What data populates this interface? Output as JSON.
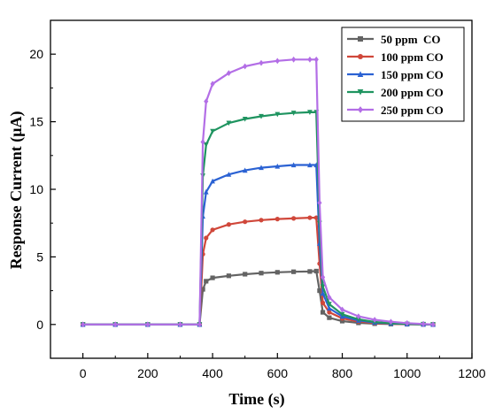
{
  "chart_data": {
    "type": "line",
    "xlabel": "Time (s)",
    "ylabel": "Response Current (μA)",
    "xlim": [
      -100,
      1200
    ],
    "ylim": [
      -2.5,
      22.5
    ],
    "xticks": [
      0,
      200,
      400,
      600,
      800,
      1000,
      1200
    ],
    "yticks": [
      0,
      5,
      10,
      15,
      20
    ],
    "legend_position": "top-right",
    "series": [
      {
        "name": "50 ppm  CO",
        "color": "#636363",
        "marker": "square",
        "x": [
          0,
          100,
          200,
          300,
          360,
          370,
          380,
          400,
          450,
          500,
          550,
          600,
          650,
          700,
          720,
          730,
          740,
          760,
          800,
          850,
          900,
          950,
          1000,
          1050,
          1080
        ],
        "y": [
          0,
          0,
          0,
          0,
          0,
          2.6,
          3.2,
          3.45,
          3.6,
          3.72,
          3.8,
          3.86,
          3.9,
          3.92,
          3.95,
          2.5,
          0.9,
          0.5,
          0.25,
          0.12,
          0.06,
          0.03,
          0.02,
          0.01,
          0.0
        ]
      },
      {
        "name": "100 ppm CO",
        "color": "#d0473a",
        "marker": "circle",
        "x": [
          0,
          100,
          200,
          300,
          360,
          370,
          380,
          400,
          450,
          500,
          550,
          600,
          650,
          700,
          720,
          730,
          740,
          760,
          800,
          850,
          900,
          950,
          1000,
          1050,
          1080
        ],
        "y": [
          0,
          0,
          0,
          0,
          0,
          5.2,
          6.4,
          7.0,
          7.4,
          7.6,
          7.72,
          7.8,
          7.85,
          7.9,
          7.9,
          4.5,
          1.6,
          0.9,
          0.45,
          0.22,
          0.1,
          0.05,
          0.02,
          0.01,
          0.0
        ]
      },
      {
        "name": "150 ppm CO",
        "color": "#2b62d3",
        "marker": "triangle-up",
        "x": [
          0,
          100,
          200,
          300,
          360,
          370,
          380,
          400,
          450,
          500,
          550,
          600,
          650,
          700,
          720,
          730,
          740,
          760,
          800,
          850,
          900,
          950,
          1000,
          1050,
          1080
        ],
        "y": [
          0,
          0,
          0,
          0,
          0,
          8.0,
          9.8,
          10.6,
          11.1,
          11.4,
          11.6,
          11.7,
          11.8,
          11.8,
          11.8,
          6.0,
          2.3,
          1.2,
          0.6,
          0.3,
          0.14,
          0.07,
          0.03,
          0.01,
          0.0
        ]
      },
      {
        "name": "200 ppm CO",
        "color": "#1f9460",
        "marker": "triangle-down",
        "x": [
          0,
          100,
          200,
          300,
          360,
          370,
          380,
          400,
          450,
          500,
          550,
          600,
          650,
          700,
          720,
          730,
          740,
          760,
          800,
          850,
          900,
          950,
          1000,
          1050,
          1080
        ],
        "y": [
          0,
          0,
          0,
          0,
          0,
          11.0,
          13.3,
          14.3,
          14.9,
          15.2,
          15.4,
          15.55,
          15.65,
          15.7,
          15.7,
          7.5,
          2.8,
          1.5,
          0.75,
          0.38,
          0.18,
          0.09,
          0.04,
          0.02,
          0.0
        ]
      },
      {
        "name": "250 ppm CO",
        "color": "#b36ee6",
        "marker": "diamond",
        "x": [
          0,
          100,
          200,
          300,
          360,
          370,
          380,
          400,
          450,
          500,
          550,
          600,
          650,
          700,
          720,
          730,
          740,
          760,
          800,
          850,
          900,
          950,
          1000,
          1050,
          1080
        ],
        "y": [
          0,
          0,
          0,
          0,
          0,
          13.5,
          16.5,
          17.8,
          18.6,
          19.1,
          19.35,
          19.5,
          19.6,
          19.6,
          19.6,
          9.0,
          3.5,
          2.0,
          1.1,
          0.6,
          0.35,
          0.2,
          0.1,
          0.04,
          0.0
        ]
      }
    ]
  }
}
